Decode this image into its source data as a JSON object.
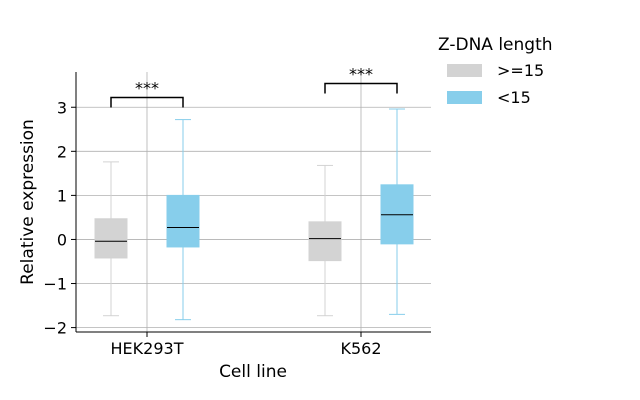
{
  "chart_data": {
    "type": "box",
    "xlabel": "Cell line",
    "ylabel": "Relative expression",
    "categories": [
      "HEK293T",
      "K562"
    ],
    "ylim": [
      -2.1,
      3.8
    ],
    "yticks": [
      -2,
      -1,
      0,
      1,
      2,
      3
    ],
    "ytick_labels": [
      "−2",
      "−1",
      "0",
      "1",
      "2",
      "3"
    ],
    "grid": true,
    "legend": {
      "title": "Z-DNA length",
      "placement": "outside-right",
      "entries": [
        {
          "label": ">=15",
          "color": "#d3d3d3"
        },
        {
          "label": "<15",
          "color": "#87ceeb"
        }
      ]
    },
    "series": [
      {
        "name": ">=15",
        "color": "#d3d3d3",
        "boxes": [
          {
            "category": "HEK293T",
            "whisker_low": -1.73,
            "q1": -0.42,
            "median": -0.04,
            "q3": 0.47,
            "whisker_high": 1.76
          },
          {
            "category": "K562",
            "whisker_low": -1.73,
            "q1": -0.48,
            "median": 0.02,
            "q3": 0.4,
            "whisker_high": 1.68
          }
        ]
      },
      {
        "name": "<15",
        "color": "#87ceeb",
        "boxes": [
          {
            "category": "HEK293T",
            "whisker_low": -1.82,
            "q1": -0.17,
            "median": 0.27,
            "q3": 1.0,
            "whisker_high": 2.72
          },
          {
            "category": "K562",
            "whisker_low": -1.7,
            "q1": -0.1,
            "median": 0.56,
            "q3": 1.24,
            "whisker_high": 2.96
          }
        ]
      }
    ],
    "annotations": [
      {
        "category": "HEK293T",
        "text": "***",
        "y": 3.22
      },
      {
        "category": "K562",
        "text": "***",
        "y": 3.54
      }
    ]
  }
}
